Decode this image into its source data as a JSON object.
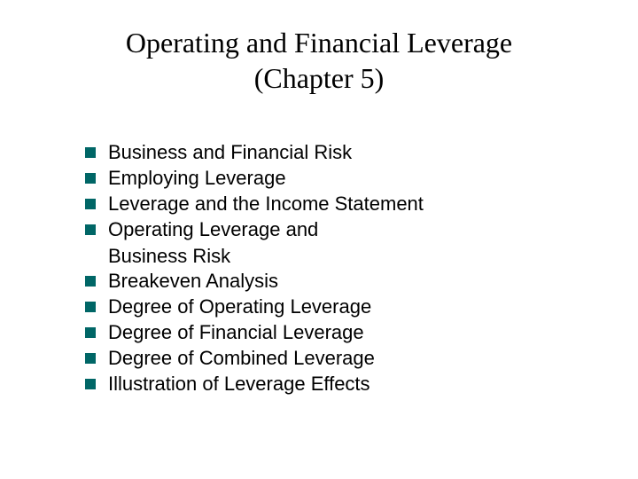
{
  "title_line1": "Operating and Financial Leverage",
  "title_line2": "(Chapter 5)",
  "colors": {
    "bullet": "#006666",
    "title": "#000000",
    "text": "#000000",
    "background": "#ffffff"
  },
  "typography": {
    "title_font": "Times New Roman",
    "title_size_pt": 32,
    "body_font": "Arial",
    "body_size_pt": 22
  },
  "bullets": {
    "item0": "Business and Financial Risk",
    "item1": "Employing Leverage",
    "item2": "Leverage and the Income Statement",
    "item3": "Operating Leverage and",
    "item3_cont": " Business Risk",
    "item4": "Breakeven Analysis",
    "item5": "Degree of Operating Leverage",
    "item6": "Degree of Financial Leverage",
    "item7": "Degree of Combined Leverage",
    "item8": "Illustration of Leverage Effects"
  }
}
